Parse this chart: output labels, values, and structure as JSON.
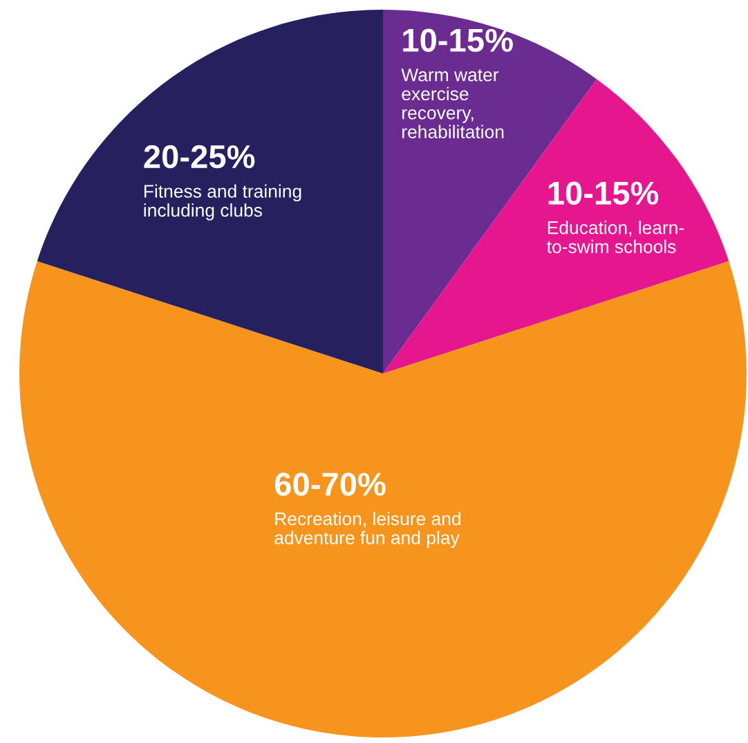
{
  "chart_data": {
    "type": "pie",
    "categories": [
      "Warm water\nexercise\nrecovery,\nrehabilitation",
      "Education, learn-\nto-swim schools",
      "Recreation, leisure and\nadventure fun and play",
      "Fitness and training\nincluding clubs"
    ],
    "values": [
      10,
      10,
      60,
      20
    ],
    "value_labels": [
      "10-15%",
      "10-15%",
      "60-70%",
      "20-25%"
    ],
    "colors": [
      "#6a2c91",
      "#e6168f",
      "#f7941d",
      "#26215e"
    ],
    "legend": false
  }
}
